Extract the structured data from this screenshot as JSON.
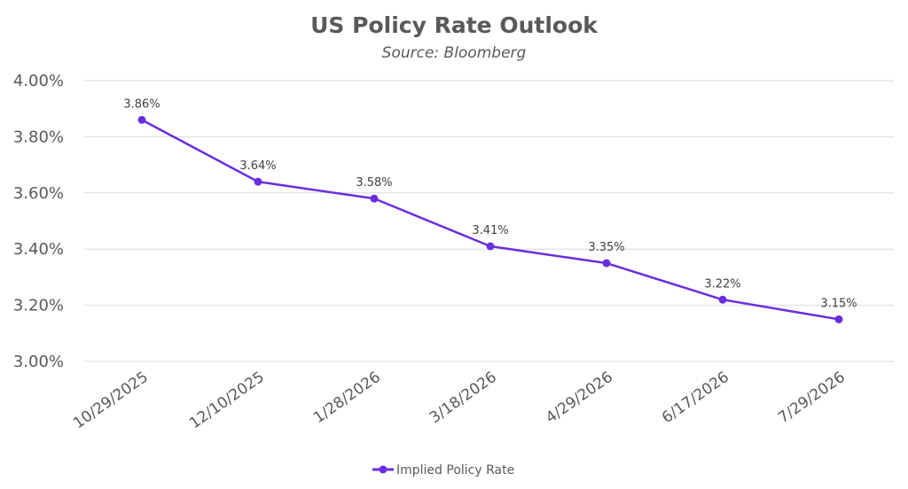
{
  "chart_data": {
    "type": "line",
    "title": "US Policy Rate Outlook",
    "subtitle": "Source: Bloomberg",
    "xlabel": "",
    "ylabel": "",
    "categories": [
      "10/29/2025",
      "12/10/2025",
      "1/28/2026",
      "3/18/2026",
      "4/29/2026",
      "6/17/2026",
      "7/29/2026"
    ],
    "series": [
      {
        "name": "Implied Policy Rate",
        "color": "#6a2ee0",
        "values": [
          3.86,
          3.64,
          3.58,
          3.41,
          3.35,
          3.22,
          3.15
        ],
        "data_labels": [
          "3.86%",
          "3.64%",
          "3.58%",
          "3.41%",
          "3.35%",
          "3.22%",
          "3.15%"
        ]
      }
    ],
    "ylim": [
      3.0,
      4.0
    ],
    "yticks": [
      4.0,
      3.8,
      3.6,
      3.4,
      3.2,
      3.0
    ],
    "ytick_labels": [
      "4.00%",
      "3.80%",
      "3.60%",
      "3.40%",
      "3.20%",
      "3.00%"
    ],
    "grid": true,
    "legend": {
      "position": "bottom",
      "entries": [
        "Implied Policy Rate"
      ]
    }
  }
}
